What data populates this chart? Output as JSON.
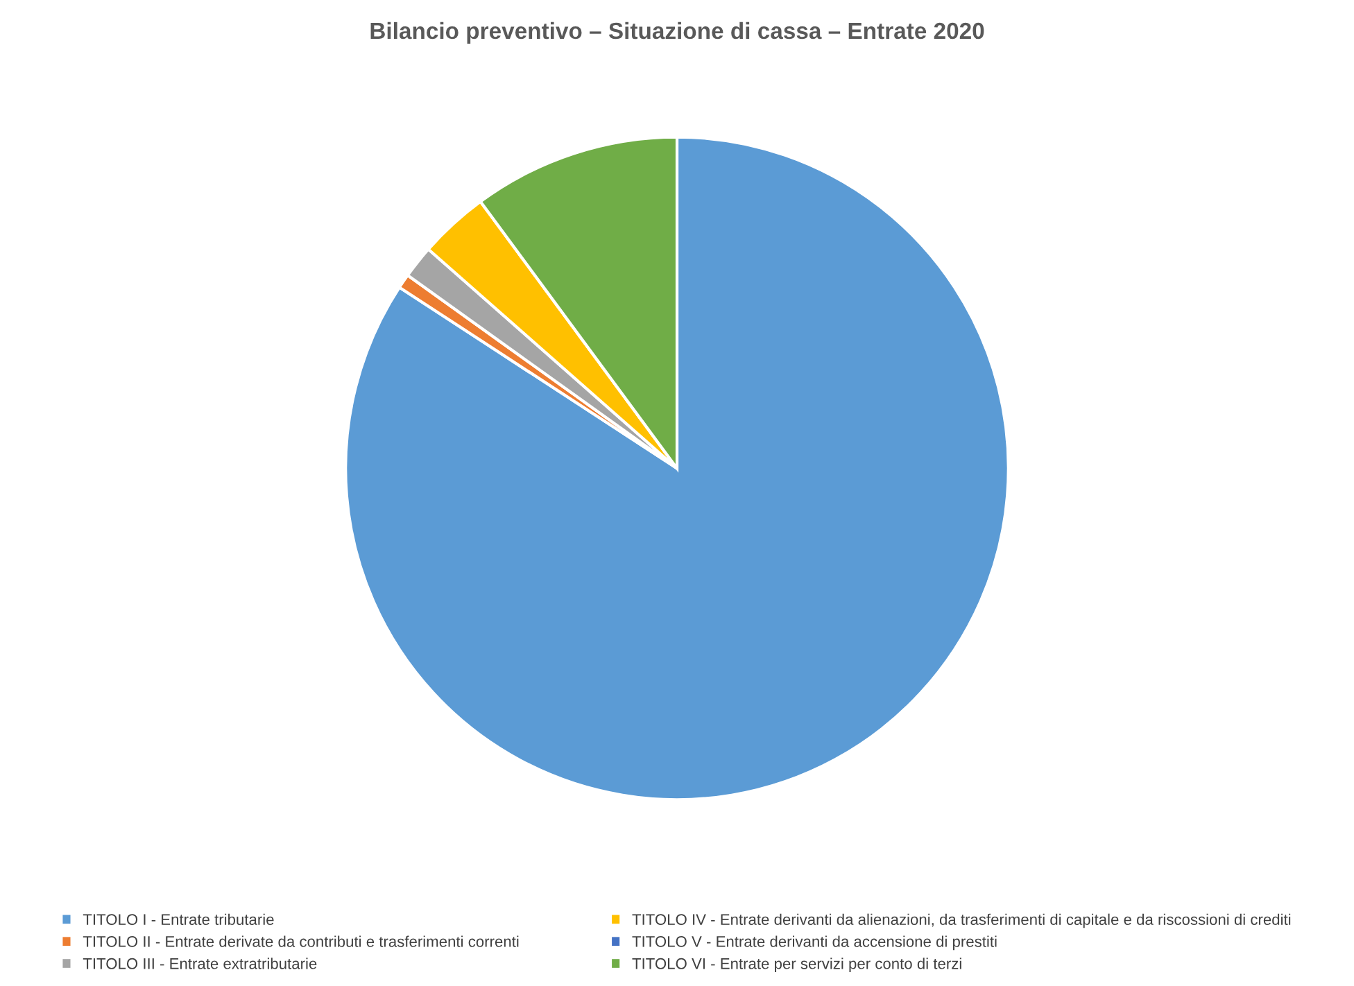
{
  "chart_data": {
    "type": "pie",
    "title": "Bilancio preventivo – Situazione di cassa – Entrate 2020",
    "categories": [
      "TITOLO I - Entrate tributarie",
      "TITOLO II - Entrate derivate da contributi e trasferimenti correnti",
      "TITOLO III - Entrate extratributarie",
      "TITOLO IV - Entrate derivanti da alienazioni, da trasferimenti di capitale e da riscossioni di crediti",
      "TITOLO V - Entrate derivanti da accensione di prestiti",
      "TITOLO VI - Entrate per servizi per conto di terzi"
    ],
    "values": [
      84.2,
      0.7,
      1.6,
      3.4,
      0,
      10.1
    ],
    "colors": [
      "#5b9bd5",
      "#ed7d31",
      "#a5a5a5",
      "#ffc000",
      "#4472c4",
      "#70ad47"
    ],
    "legend": "bottom"
  }
}
